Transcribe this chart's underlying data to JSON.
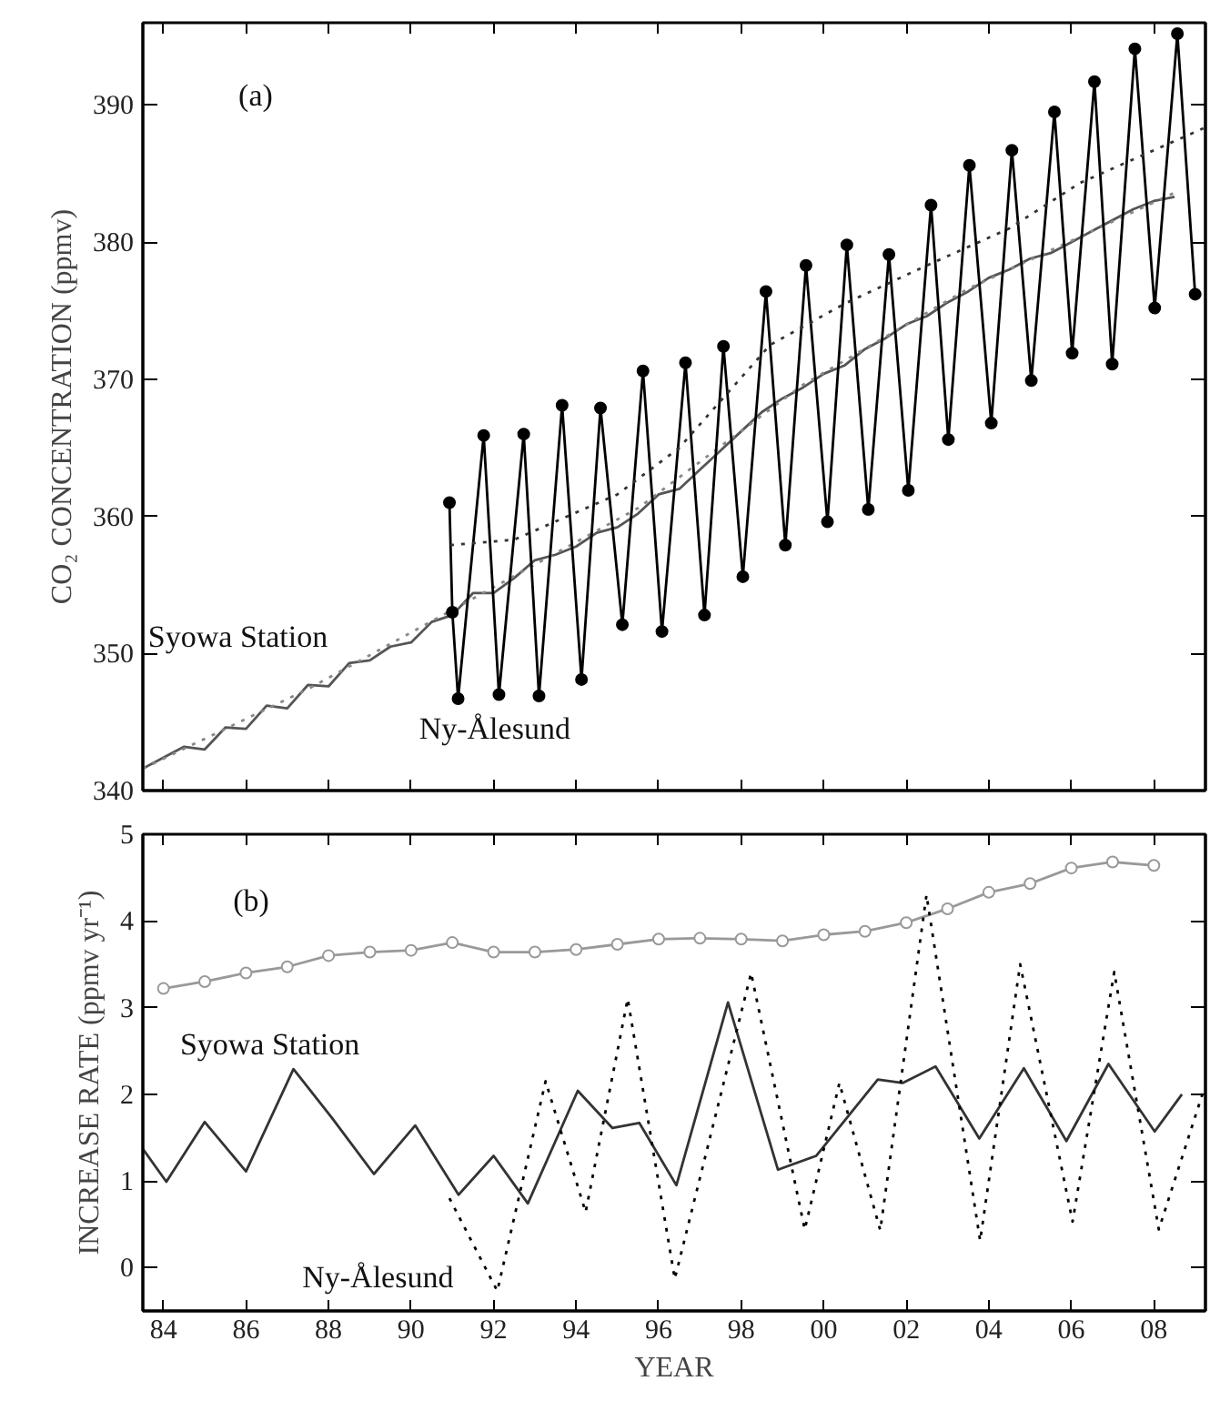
{
  "chart_data": [
    {
      "type": "line",
      "ylabel": "CO₂ CONCENTRATION (ppmv)",
      "xlim": [
        1983.5,
        2009.25
      ],
      "ylim": [
        340,
        396
      ],
      "yticks": [
        340,
        350,
        360,
        370,
        380,
        390
      ],
      "xticks": [
        1984,
        1986,
        1988,
        1990,
        1992,
        1994,
        1996,
        1998,
        2000,
        2002,
        2004,
        2006,
        2008
      ],
      "tick_labels": "y",
      "grid": false,
      "annotations": [
        "(a)",
        "Syowa Station",
        "Ny-Ålesund"
      ],
      "series": [
        {
          "color": "#555555",
          "line_style": "solid",
          "marker": "none",
          "x": [
            1983.5,
            1984.0,
            1984.5,
            1985.0,
            1985.5,
            1986.0,
            1986.5,
            1987.0,
            1987.5,
            1988.0,
            1988.5,
            1989.0,
            1989.5,
            1990.0,
            1990.5,
            1991.0,
            1991.5,
            1992.0,
            1992.5,
            1993.0,
            1993.5,
            1994.0,
            1994.5,
            1995.0,
            1995.5,
            1996.0,
            1996.5,
            1997.0,
            1997.5,
            1998.0,
            1998.5,
            1999.0,
            1999.5,
            2000.0,
            2000.5,
            2001.0,
            2001.5,
            2002.0,
            2002.5,
            2003.0,
            2003.5,
            2004.0,
            2004.5,
            2005.0,
            2005.5,
            2006.0,
            2006.5,
            2007.0,
            2007.5,
            2008.0,
            2008.5
          ],
          "values": [
            341.6,
            342.4,
            343.2,
            343.0,
            344.6,
            344.5,
            346.2,
            346.0,
            347.7,
            347.6,
            349.3,
            349.5,
            350.5,
            350.8,
            352.3,
            352.8,
            354.4,
            354.4,
            355.5,
            356.8,
            357.2,
            357.8,
            358.8,
            359.2,
            360.2,
            361.6,
            362.0,
            363.4,
            364.8,
            366.2,
            367.6,
            368.6,
            369.4,
            370.4,
            371.0,
            372.2,
            373.0,
            374.0,
            374.6,
            375.6,
            376.4,
            377.4,
            378.0,
            378.8,
            379.2,
            380.0,
            380.8,
            381.6,
            382.4,
            383.0,
            383.3
          ]
        },
        {
          "color": "#888888",
          "line_style": "dotted",
          "marker": "none",
          "x": [
            1983.5,
            1987.5,
            1991.5,
            1995.5,
            1999.5,
            2003.5,
            2008.5
          ],
          "values": [
            341.6,
            347.4,
            354.0,
            360.6,
            369.6,
            376.6,
            383.6
          ]
        },
        {
          "color": "#000000",
          "line_style": "solid",
          "marker": "circle",
          "x": [
            1990.93,
            1991.0,
            1991.14,
            1991.76,
            1992.13,
            1992.73,
            1993.1,
            1993.66,
            1994.13,
            1994.59,
            1995.12,
            1995.62,
            1996.08,
            1996.65,
            1997.11,
            1997.57,
            1998.04,
            1998.6,
            1999.07,
            1999.57,
            2000.09,
            2000.56,
            2001.08,
            2001.58,
            2002.05,
            2002.6,
            2003.02,
            2003.53,
            2004.06,
            2004.56,
            2005.03,
            2005.59,
            2006.02,
            2006.56,
            2006.99,
            2007.54,
            2008.02,
            2008.57,
            2009.0
          ],
          "values": [
            361,
            353,
            346.7,
            365.9,
            347,
            366,
            346.9,
            368.1,
            348.1,
            367.9,
            352.1,
            370.6,
            351.6,
            371.2,
            352.8,
            372.4,
            355.6,
            376.4,
            357.9,
            378.3,
            359.6,
            379.8,
            360.5,
            379.1,
            361.9,
            382.7,
            365.6,
            385.6,
            366.8,
            386.7,
            369.9,
            389.5,
            371.9,
            391.7,
            371.1,
            394.1,
            375.2,
            395.2,
            376.2
          ]
        },
        {
          "color": "#333333",
          "line_style": "dotted",
          "marker": "none",
          "x": [
            1990.95,
            1992.5,
            1995.0,
            1996.5,
            1998.7,
            2000.5,
            2002.5,
            2004.5,
            2006.2,
            2009.2
          ],
          "values": [
            357.9,
            358.3,
            361.6,
            365.0,
            372.5,
            375.5,
            378.3,
            381.0,
            384.3,
            388.3
          ]
        }
      ]
    },
    {
      "type": "line",
      "xlabel": "YEAR",
      "ylabel": "INCREASE RATE (ppmv yr⁻¹)",
      "xlim": [
        1983.5,
        2009.25
      ],
      "ylim": [
        -0.5,
        5
      ],
      "yticks": [
        0,
        1,
        2,
        3,
        4,
        5
      ],
      "xticks": [
        {
          "value": 1984,
          "label": "84"
        },
        {
          "value": 1986,
          "label": "86"
        },
        {
          "value": 1988,
          "label": "88"
        },
        {
          "value": 1990,
          "label": "90"
        },
        {
          "value": 1992,
          "label": "92"
        },
        {
          "value": 1994,
          "label": "94"
        },
        {
          "value": 1996,
          "label": "96"
        },
        {
          "value": 1998,
          "label": "98"
        },
        {
          "value": 2000,
          "label": "00"
        },
        {
          "value": 2002,
          "label": "02"
        },
        {
          "value": 2004,
          "label": "04"
        },
        {
          "value": 2006,
          "label": "06"
        },
        {
          "value": 2008,
          "label": "08"
        }
      ],
      "grid": false,
      "annotations": [
        "(b)",
        "Syowa Station",
        "Ny-Ålesund"
      ],
      "series": [
        {
          "color": "#999999",
          "line_style": "solid",
          "marker": "circle",
          "x": [
            1984,
            1985,
            1986,
            1987,
            1988,
            1989,
            1990,
            1991,
            1992,
            1993,
            1994,
            1995,
            1996,
            1997,
            1998,
            1999,
            2000,
            2001,
            2002,
            2003,
            2004,
            2005,
            2006,
            2007,
            2008
          ],
          "values": [
            3.22,
            3.3,
            3.4,
            3.47,
            3.6,
            3.64,
            3.66,
            3.75,
            3.64,
            3.64,
            3.67,
            3.73,
            3.79,
            3.8,
            3.79,
            3.77,
            3.84,
            3.88,
            3.98,
            4.14,
            4.33,
            4.43,
            4.61,
            4.68,
            4.64
          ]
        },
        {
          "color": "#333333",
          "line_style": "solid",
          "marker": "none",
          "x": [
            1983.5,
            1984.07,
            1985.0,
            1986.0,
            1987.15,
            1988.08,
            1989.1,
            1990.1,
            1991.15,
            1992.0,
            1992.83,
            1994.04,
            1994.88,
            1995.53,
            1996.43,
            1997.68,
            1998.89,
            1999.82,
            2001.31,
            2001.91,
            2002.71,
            2003.77,
            2004.85,
            2005.88,
            2006.9,
            2008.02,
            2008.68
          ],
          "values": [
            1.37,
            0.99,
            1.68,
            1.11,
            2.29,
            1.73,
            1.08,
            1.64,
            0.84,
            1.29,
            0.74,
            2.04,
            1.61,
            1.67,
            0.95,
            3.06,
            1.13,
            1.29,
            2.17,
            2.13,
            2.32,
            1.49,
            2.3,
            1.46,
            2.35,
            1.57,
            2.0
          ]
        },
        {
          "color": "#000000",
          "line_style": "dotted",
          "marker": "none",
          "x": [
            1990.93,
            1992.09,
            1993.26,
            1994.23,
            1995.25,
            1996.39,
            1998.24,
            1999.54,
            2000.38,
            2001.37,
            2002.49,
            2003.79,
            2004.76,
            2006.03,
            2007.04,
            2008.12,
            2009.23
          ],
          "values": [
            0.8,
            -0.27,
            2.15,
            0.64,
            3.1,
            -0.13,
            3.4,
            0.44,
            2.13,
            0.43,
            4.3,
            0.31,
            3.5,
            0.53,
            3.41,
            0.44,
            2.08
          ]
        }
      ]
    }
  ]
}
